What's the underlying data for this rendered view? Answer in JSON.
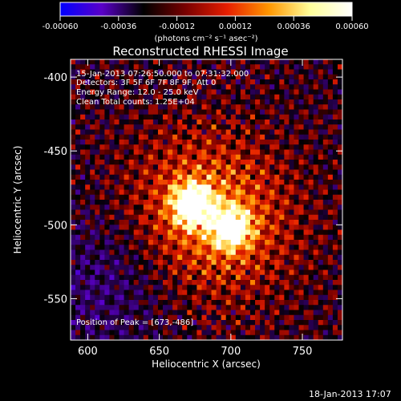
{
  "colorbar": {
    "ticks": [
      "-0.00060",
      "-0.00036",
      "-0.00012",
      "0.00012",
      "0.00036",
      "0.00060"
    ],
    "unit_label": "(photons cm⁻² s⁻¹ asec⁻²)",
    "range": [
      -0.0006,
      0.0006
    ],
    "palette": [
      "#0000ff",
      "#5a00c8",
      "#000000",
      "#780000",
      "#e61e00",
      "#ff9600",
      "#ffff9b",
      "#ffffff"
    ]
  },
  "overlay": {
    "time_range": "15-Jan-2013 07:26:50.000 to 07:31:32.000",
    "detectors": "Detectors: 3F 5F 6F 7F 8F 9F, Att 0",
    "energy": "Energy Range: 12.0 - 25.0 keV",
    "clean_counts": "Clean     Total counts: 1.25E+04",
    "peak": "Position of Peak = [673,-486]"
  },
  "footer": {
    "date": "18-Jan-2013 17:07"
  },
  "chart_data": {
    "type": "heatmap",
    "title": "Reconstructed RHESSI Image",
    "xlabel": "Heliocentric X (arcsec)",
    "ylabel": "Heliocentric Y (arcsec)",
    "xlim": [
      588,
      778
    ],
    "ylim": [
      -578,
      -388
    ],
    "xticks": [
      600,
      650,
      700,
      750
    ],
    "yticks": [
      -400,
      -450,
      -500,
      -550
    ],
    "peak_position": [
      673,
      -486
    ],
    "sources": [
      {
        "x": 673,
        "y": -486,
        "peak_intensity": 0.0006
      },
      {
        "x": 700,
        "y": -502,
        "peak_intensity": 0.00054
      }
    ]
  }
}
